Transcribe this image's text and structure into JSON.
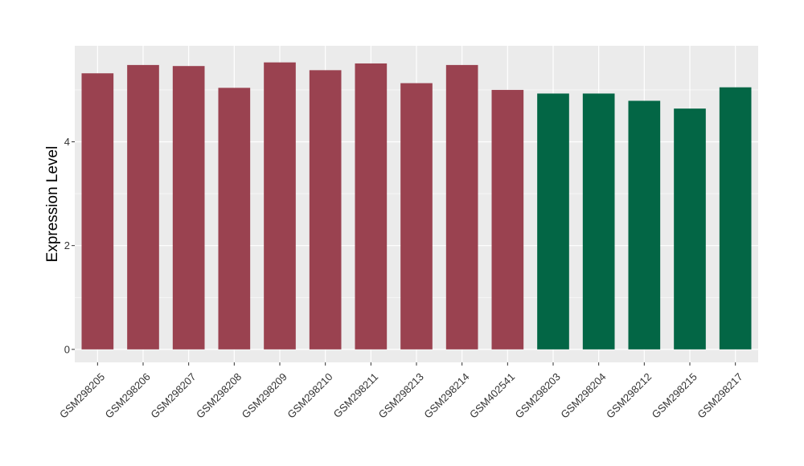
{
  "chart_data": {
    "type": "bar",
    "ylabel": "Expression Level",
    "xlabel": "",
    "ylim": [
      -0.25,
      5.85
    ],
    "yticks": [
      0,
      2,
      4
    ],
    "grid": true,
    "categories": [
      "GSM298205",
      "GSM298206",
      "GSM298207",
      "GSM298208",
      "GSM298209",
      "GSM298210",
      "GSM298211",
      "GSM298213",
      "GSM298214",
      "GSM402541",
      "GSM298203",
      "GSM298204",
      "GSM298212",
      "GSM298215",
      "GSM298217"
    ],
    "values": [
      5.32,
      5.48,
      5.46,
      5.04,
      5.53,
      5.38,
      5.51,
      5.13,
      5.48,
      5.0,
      4.93,
      4.93,
      4.79,
      4.64,
      5.05
    ],
    "colors": [
      "#9a4250",
      "#9a4250",
      "#9a4250",
      "#9a4250",
      "#9a4250",
      "#9a4250",
      "#9a4250",
      "#9a4250",
      "#9a4250",
      "#9a4250",
      "#036645",
      "#036645",
      "#036645",
      "#036645",
      "#036645"
    ],
    "panel_background": "#ebebeb",
    "grid_color": "#ffffff"
  }
}
